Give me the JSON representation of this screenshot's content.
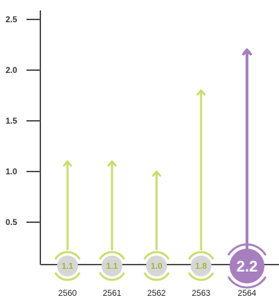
{
  "chart_data": {
    "type": "bar",
    "title": "",
    "xlabel": "",
    "ylabel": "",
    "categories": [
      "2560",
      "2561",
      "2562",
      "2563",
      "2564"
    ],
    "values": [
      1.1,
      1.1,
      1.0,
      1.8,
      2.2
    ],
    "value_labels": [
      "1.1",
      "1.1",
      "1.0",
      "1.8",
      "2.2"
    ],
    "highlight_index": 4,
    "ylim": [
      0,
      2.5
    ],
    "yticks": [
      0.5,
      1.0,
      1.5,
      2.0,
      2.5
    ],
    "ytick_labels": [
      "0.5",
      "1.0",
      "1.5",
      "2.0",
      "2.5"
    ],
    "grid": false,
    "legend": "none",
    "colors": {
      "arrow": "#c8de6a",
      "highlight": "#a77fbe",
      "circle_fill": "#d6d6d6",
      "value_text": "#9ab83a",
      "highlight_text": "#ffffff",
      "axis": "#4a4a4a"
    }
  }
}
